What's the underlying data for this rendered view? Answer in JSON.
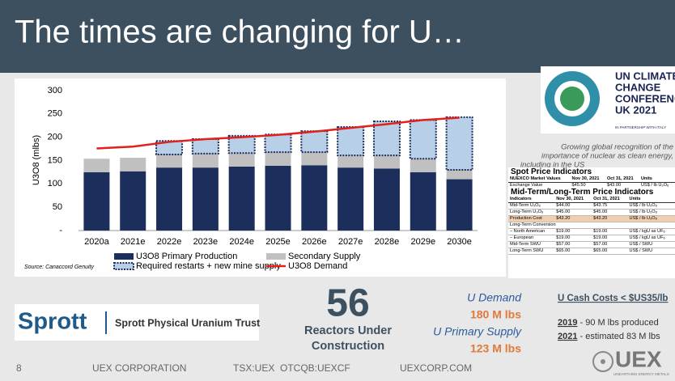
{
  "header": {
    "title": "The times are changing for U…"
  },
  "chart_data": {
    "type": "bar",
    "stacked": true,
    "ylabel": "U3O8 (mlbs)",
    "source": "Source: Canaccord Genuity",
    "categories": [
      "2020a",
      "2021e",
      "2022e",
      "2023e",
      "2024e",
      "2025e",
      "2026e",
      "2027e",
      "2028e",
      "2029e",
      "2030e"
    ],
    "series": [
      {
        "name": "U3O8 Primary Production",
        "color": "#1c2f5c",
        "values": [
          125,
          127,
          135,
          135,
          137,
          139,
          140,
          135,
          133,
          125,
          110
        ]
      },
      {
        "name": "Secondary Supply",
        "color": "#c0c0c0",
        "values": [
          29,
          29,
          28,
          30,
          29,
          29,
          28,
          26,
          28,
          29,
          20
        ]
      },
      {
        "name": "Required restarts + new mine supply",
        "color": "#b8cfe8",
        "edgecolor": "#1c2f5c",
        "linestyle": "dotted",
        "values": [
          0,
          0,
          29,
          31,
          37,
          38,
          45,
          61,
          73,
          83,
          113
        ]
      },
      {
        "name": "U3O8 Demand",
        "type": "line",
        "color": "#e3201b",
        "values": [
          176,
          180,
          190,
          196,
          200,
          205,
          212,
          220,
          228,
          237,
          242
        ]
      }
    ],
    "ylim": [
      0,
      300
    ],
    "yticks": [
      {
        "value": 0,
        "label": "-"
      },
      50,
      100,
      150,
      200,
      250,
      300
    ],
    "grid": false
  },
  "cop": {
    "lines": [
      "UN CLIMATE",
      "CHANGE",
      "CONFERENCE",
      "UK 2021"
    ],
    "partner": "IN PARTNERSHIP WITH ITALY"
  },
  "caption": {
    "lines": [
      "Growing global recognition of the",
      "importance of nuclear as clean energy,",
      "including in the US"
    ]
  },
  "spot_table": {
    "title": "Spot Price Indicators",
    "header": [
      "NUEXCO Market Values",
      "Nov 30, 2021",
      "Oct 31, 2021",
      "Units"
    ],
    "rows": [
      [
        "Exchange Value",
        "$45.50",
        "$43.00",
        "US$ / lb U₃O₈"
      ],
      [
        "Daily U₃O₈",
        "$45.50",
        "$43.00",
        "US$ / lb U₃O₈"
      ]
    ]
  },
  "term_table": {
    "title": "Mid-Term/Long-Term Price Indicators",
    "header": [
      "Indicators",
      "Nov 30, 2021",
      "Oct 31, 2021",
      "Units"
    ],
    "rows": [
      [
        "Mid-Term U₃O₈",
        "$44.00",
        "$43.75",
        "US$ / lb U₃O₈"
      ],
      [
        "Long-Term U₃O₈",
        "$45.00",
        "$45.00",
        "US$ / lb U₃O₈"
      ],
      [
        "Production Cost",
        "$43.20",
        "$43.20",
        "US$ / lb U₃O₈"
      ],
      [
        "Long-Term Conversion"
      ],
      [
        "– North American",
        "$19.00",
        "$19.00",
        "US$ / kgU as UF₆"
      ],
      [
        "– European",
        "$19.00",
        "$19.00",
        "US$ / kgU as UF₆"
      ],
      [
        "Mid-Term SWU",
        "$57.00",
        "$57.00",
        "US$ / SWU"
      ],
      [
        "Long-Term SWU",
        "$65.00",
        "$65.00",
        "US$ / SWU"
      ]
    ]
  },
  "sprott": {
    "brand": "Sprott",
    "name": "Sprott Physical Uranium Trust"
  },
  "reactors": {
    "number": "56",
    "line1": "Reactors Under",
    "line2": "Construction"
  },
  "supply": {
    "demand_label": "U Demand",
    "demand_value": "180 M lbs",
    "primary_label": "U Primary Supply",
    "primary_value": "123 M lbs"
  },
  "costs": {
    "title": "U Cash Costs < $US35/lb",
    "y1": "2019",
    "t1": " - 90 M lbs produced",
    "y2": "2021",
    "t2": " - estimated 83 M lbs"
  },
  "footer": {
    "page": "8",
    "company": "UEX CORPORATION",
    "tickers": "TSX:UEX  OTCQB:UEXCF",
    "site": "UEXCORP.COM",
    "logo": "UEX",
    "tagline": "UNEARTHING ENERGY METALS"
  }
}
